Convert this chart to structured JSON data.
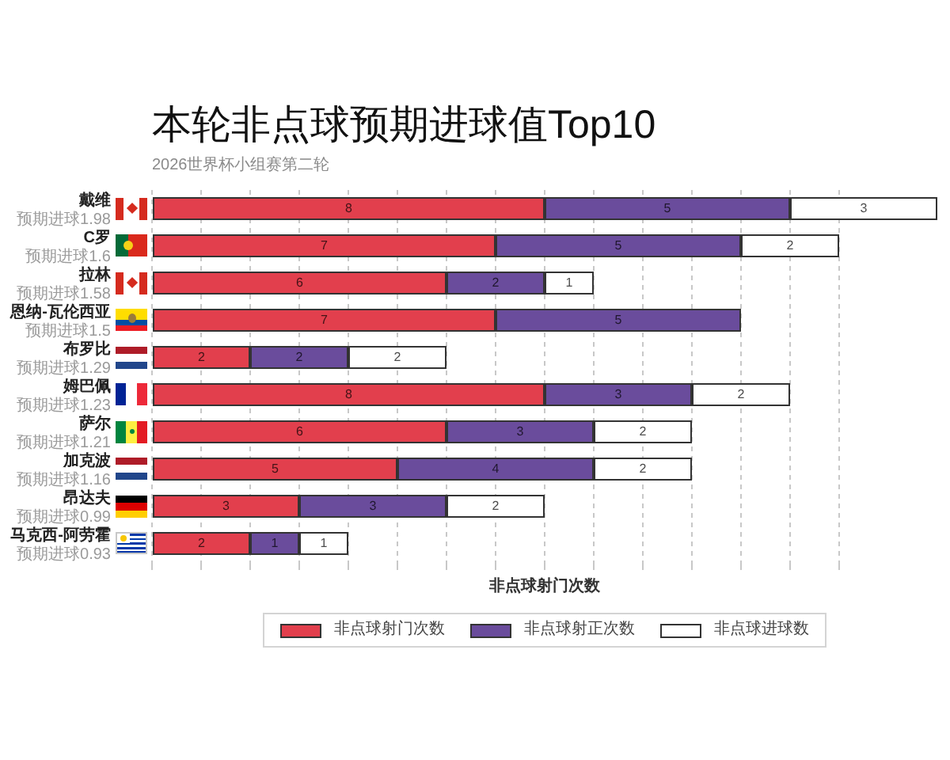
{
  "chart_data": {
    "type": "bar",
    "orientation": "horizontal",
    "stacked": true,
    "title": "本轮非点球预期进球值Top10",
    "subtitle": "2026世界杯小组赛第二轮",
    "xlabel": "非点球射门次数",
    "categories": [
      "戴维",
      "C罗",
      "拉林",
      "恩纳-瓦伦西亚",
      "布罗比",
      "姆巴佩",
      "萨尔",
      "加克波",
      "昂达夫",
      "马克西-阿劳霍"
    ],
    "series": [
      {
        "name": "非点球射门次数",
        "color": "#e23f4d",
        "values": [
          8,
          7,
          6,
          7,
          2,
          8,
          6,
          5,
          3,
          2
        ]
      },
      {
        "name": "非点球射正次数",
        "color": "#6a4c9c",
        "values": [
          5,
          5,
          2,
          5,
          2,
          3,
          3,
          4,
          3,
          1
        ]
      },
      {
        "name": "非点球进球数",
        "color": "#ffffff",
        "values": [
          3,
          2,
          1,
          null,
          2,
          2,
          2,
          2,
          2,
          1
        ]
      }
    ],
    "xlim": [
      0,
      16
    ],
    "xticks": [
      {
        "value": 0,
        "label": null
      },
      {
        "value": 1,
        "label": null
      },
      {
        "value": 2,
        "label": null
      },
      {
        "value": 3,
        "label": null
      },
      {
        "value": 4,
        "label": null
      },
      {
        "value": 5,
        "label": null
      },
      {
        "value": 6,
        "label": null
      },
      {
        "value": 7,
        "label": null
      },
      {
        "value": 8,
        "label": null
      },
      {
        "value": 9,
        "label": null
      },
      {
        "value": 10,
        "label": null
      },
      {
        "value": 11,
        "label": null
      },
      {
        "value": 12,
        "label": null
      },
      {
        "value": 13,
        "label": null
      },
      {
        "value": 14,
        "label": null
      }
    ],
    "grid": "x",
    "tick_labels": "y",
    "legend": "bottom",
    "data_labels": true,
    "annotations": [
      "预期进球1.98",
      "预期进球1.6",
      "预期进球1.58",
      "预期进球1.5",
      "预期进球1.29",
      "预期进球1.23",
      "预期进球1.21",
      "预期进球1.16",
      "预期进球0.99",
      "预期进球0.93"
    ]
  }
}
